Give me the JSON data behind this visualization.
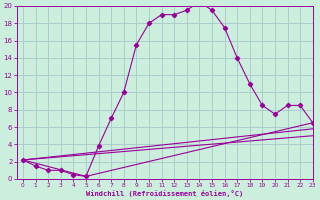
{
  "xlabel": "Windchill (Refroidissement éolien,°C)",
  "background_color": "#cceedd",
  "grid_color": "#aacccc",
  "line_color": "#990099",
  "line1_x": [
    0,
    1,
    2,
    3,
    4,
    5,
    6,
    7,
    8,
    9,
    10,
    11,
    12,
    13,
    14,
    15,
    16,
    17,
    18,
    19,
    20,
    21,
    22,
    23
  ],
  "line1_y": [
    2.2,
    1.5,
    1.0,
    1.0,
    0.5,
    0.3,
    3.8,
    7.0,
    10.0,
    15.5,
    18.0,
    19.0,
    19.0,
    19.5,
    20.5,
    19.5,
    17.5,
    14.0,
    11.0,
    8.5,
    7.5,
    8.5,
    8.5,
    6.5
  ],
  "line2_x": [
    0,
    5,
    23
  ],
  "line2_y": [
    2.2,
    0.3,
    6.5
  ],
  "line3_x": [
    0,
    23
  ],
  "line3_y": [
    2.2,
    5.0
  ],
  "line4_x": [
    0,
    23
  ],
  "line4_y": [
    2.2,
    5.8
  ],
  "xlim": [
    -0.5,
    23
  ],
  "ylim": [
    0,
    20
  ],
  "yticks": [
    0,
    2,
    4,
    6,
    8,
    10,
    12,
    14,
    16,
    18,
    20
  ],
  "xticks": [
    0,
    1,
    2,
    3,
    4,
    5,
    6,
    7,
    8,
    9,
    10,
    11,
    12,
    13,
    14,
    15,
    16,
    17,
    18,
    19,
    20,
    21,
    22,
    23
  ]
}
